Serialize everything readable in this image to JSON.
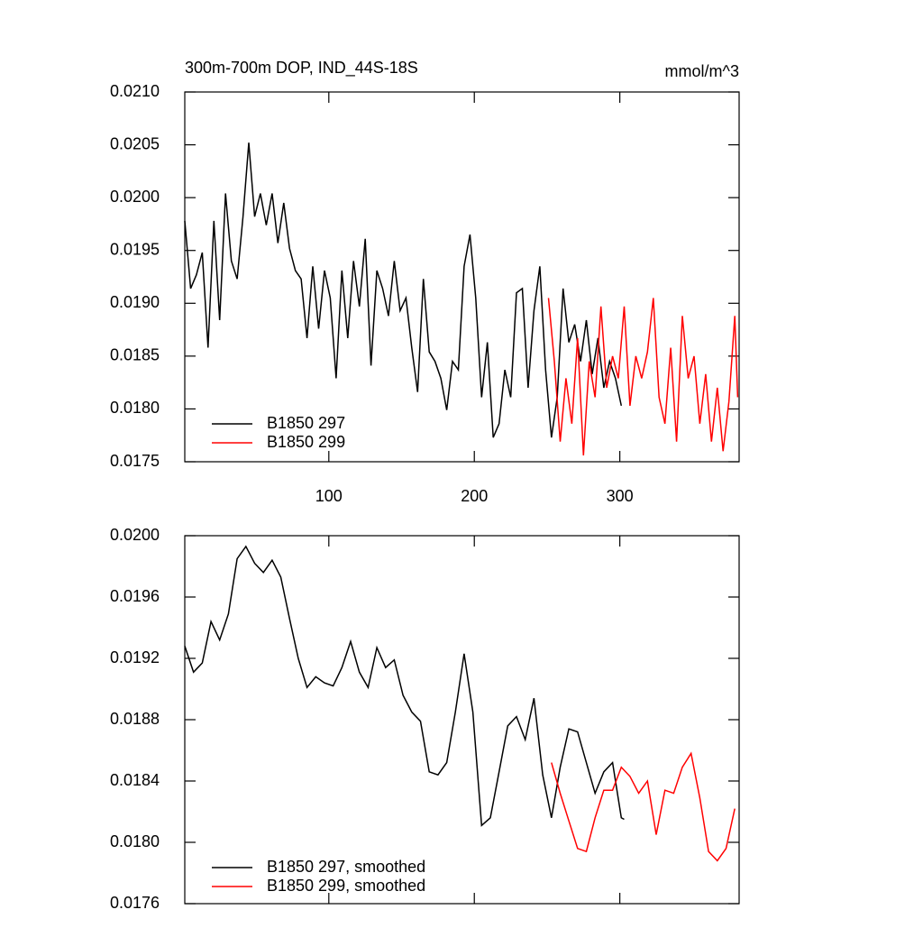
{
  "chart_data": [
    {
      "type": "line",
      "title": "300m-700m DOP, IND_44S-18S",
      "right_title": "mmol/m^3",
      "xlim": [
        1,
        382
      ],
      "xticks": [
        100,
        200,
        300
      ],
      "ylim": [
        0.0175,
        0.021
      ],
      "yticks": [
        {
          "value": 0.021,
          "label": "0.0210"
        },
        0.0205,
        {
          "value": 0.02,
          "label": "0.0200"
        },
        0.0195,
        {
          "value": 0.019,
          "label": "0.0190"
        },
        0.0185,
        {
          "value": 0.018,
          "label": "0.0180"
        },
        0.0175
      ],
      "series": [
        {
          "name": "B1850 297",
          "color": "#000000",
          "x": [
            1,
            5,
            9,
            13,
            17,
            21,
            25,
            29,
            33,
            37,
            41,
            45,
            49,
            53,
            57,
            61,
            65,
            69,
            73,
            77,
            81,
            85,
            89,
            93,
            97,
            101,
            105,
            109,
            113,
            117,
            121,
            125,
            129,
            133,
            137,
            141,
            145,
            149,
            153,
            157,
            161,
            165,
            169,
            173,
            177,
            181,
            185,
            189,
            193,
            197,
            201,
            205,
            209,
            213,
            217,
            221,
            225,
            229,
            233,
            237,
            241,
            245,
            249,
            253,
            257,
            261,
            265,
            269,
            273,
            277,
            281,
            285,
            289,
            293,
            297,
            301
          ],
          "values": [
            0.01978,
            0.01914,
            0.01927,
            0.01948,
            0.01858,
            0.01978,
            0.01884,
            0.02004,
            0.0194,
            0.01923,
            0.01982,
            0.02052,
            0.01982,
            0.02004,
            0.01974,
            0.02004,
            0.01957,
            0.01995,
            0.01952,
            0.01931,
            0.01923,
            0.01867,
            0.01935,
            0.01876,
            0.01931,
            0.01905,
            0.01829,
            0.01931,
            0.01867,
            0.0194,
            0.01897,
            0.01961,
            0.01841,
            0.01931,
            0.01914,
            0.01888,
            0.0194,
            0.01893,
            0.01905,
            0.01858,
            0.01816,
            0.01923,
            0.01854,
            0.01845,
            0.01829,
            0.01799,
            0.01845,
            0.01837,
            0.01935,
            0.01965,
            0.01905,
            0.01811,
            0.01863,
            0.01773,
            0.01786,
            0.01837,
            0.01811,
            0.0191,
            0.01914,
            0.0182,
            0.01893,
            0.01935,
            0.01837,
            0.01773,
            0.01811,
            0.01914,
            0.01863,
            0.0188,
            0.01845,
            0.01884,
            0.01833,
            0.01867,
            0.0182,
            0.01845,
            0.01829,
            0.01803
          ]
        },
        {
          "name": "B1850 299",
          "color": "#ff0000",
          "x": [
            251,
            255,
            259,
            263,
            267,
            271,
            275,
            279,
            283,
            287,
            291,
            295,
            299,
            303,
            307,
            311,
            315,
            319,
            323,
            327,
            331,
            335,
            339,
            343,
            347,
            351,
            355,
            359,
            363,
            367,
            371,
            375,
            379,
            381
          ],
          "values": [
            0.01905,
            0.01845,
            0.01769,
            0.01829,
            0.01786,
            0.01867,
            0.01756,
            0.01845,
            0.01811,
            0.01897,
            0.0182,
            0.0185,
            0.01829,
            0.01897,
            0.01803,
            0.0185,
            0.01829,
            0.01854,
            0.01905,
            0.01811,
            0.01786,
            0.01858,
            0.01769,
            0.01888,
            0.01829,
            0.0185,
            0.01786,
            0.01833,
            0.01769,
            0.0182,
            0.0176,
            0.01807,
            0.01888,
            0.01811
          ]
        }
      ]
    },
    {
      "type": "line",
      "xlim": [
        1,
        382
      ],
      "xticks": [
        100,
        200,
        300
      ],
      "ylim": [
        0.0176,
        0.02
      ],
      "yticks": [
        {
          "value": 0.02,
          "label": "0.0200"
        },
        0.0196,
        0.0192,
        0.0188,
        0.0184,
        {
          "value": 0.018,
          "label": "0.0180"
        },
        0.0176
      ],
      "series": [
        {
          "name": "B1850 297, smoothed",
          "color": "#000000",
          "x": [
            1,
            7,
            13,
            19,
            25,
            31,
            37,
            43,
            49,
            55,
            61,
            67,
            73,
            79,
            85,
            91,
            97,
            103,
            109,
            115,
            121,
            127,
            133,
            139,
            145,
            151,
            157,
            163,
            169,
            175,
            181,
            187,
            193,
            199,
            205,
            211,
            217,
            223,
            229,
            235,
            241,
            247,
            253,
            259,
            265,
            271,
            277,
            283,
            289,
            295,
            301,
            303
          ],
          "values": [
            0.01928,
            0.01911,
            0.01917,
            0.01944,
            0.01932,
            0.01949,
            0.01985,
            0.01993,
            0.01982,
            0.01976,
            0.01984,
            0.01973,
            0.01946,
            0.0192,
            0.01901,
            0.01908,
            0.01904,
            0.01902,
            0.01914,
            0.01931,
            0.01911,
            0.01901,
            0.01927,
            0.01914,
            0.01919,
            0.01896,
            0.01885,
            0.01879,
            0.01846,
            0.01844,
            0.01852,
            0.01885,
            0.01923,
            0.01885,
            0.01811,
            0.01816,
            0.01846,
            0.01876,
            0.01882,
            0.01867,
            0.01894,
            0.01844,
            0.01816,
            0.01849,
            0.01874,
            0.01872,
            0.01852,
            0.01832,
            0.01846,
            0.01852,
            0.01816,
            0.01815
          ]
        },
        {
          "name": "B1850 299, smoothed",
          "color": "#ff0000",
          "x": [
            253,
            259,
            265,
            271,
            277,
            283,
            289,
            295,
            301,
            307,
            313,
            319,
            325,
            331,
            337,
            343,
            349,
            355,
            361,
            367,
            373,
            379
          ],
          "values": [
            0.01852,
            0.01832,
            0.01814,
            0.01796,
            0.01794,
            0.01816,
            0.01834,
            0.01834,
            0.01849,
            0.01843,
            0.01832,
            0.0184,
            0.01805,
            0.01834,
            0.01832,
            0.01849,
            0.01858,
            0.01829,
            0.01794,
            0.01788,
            0.01796,
            0.01822
          ]
        }
      ]
    }
  ]
}
